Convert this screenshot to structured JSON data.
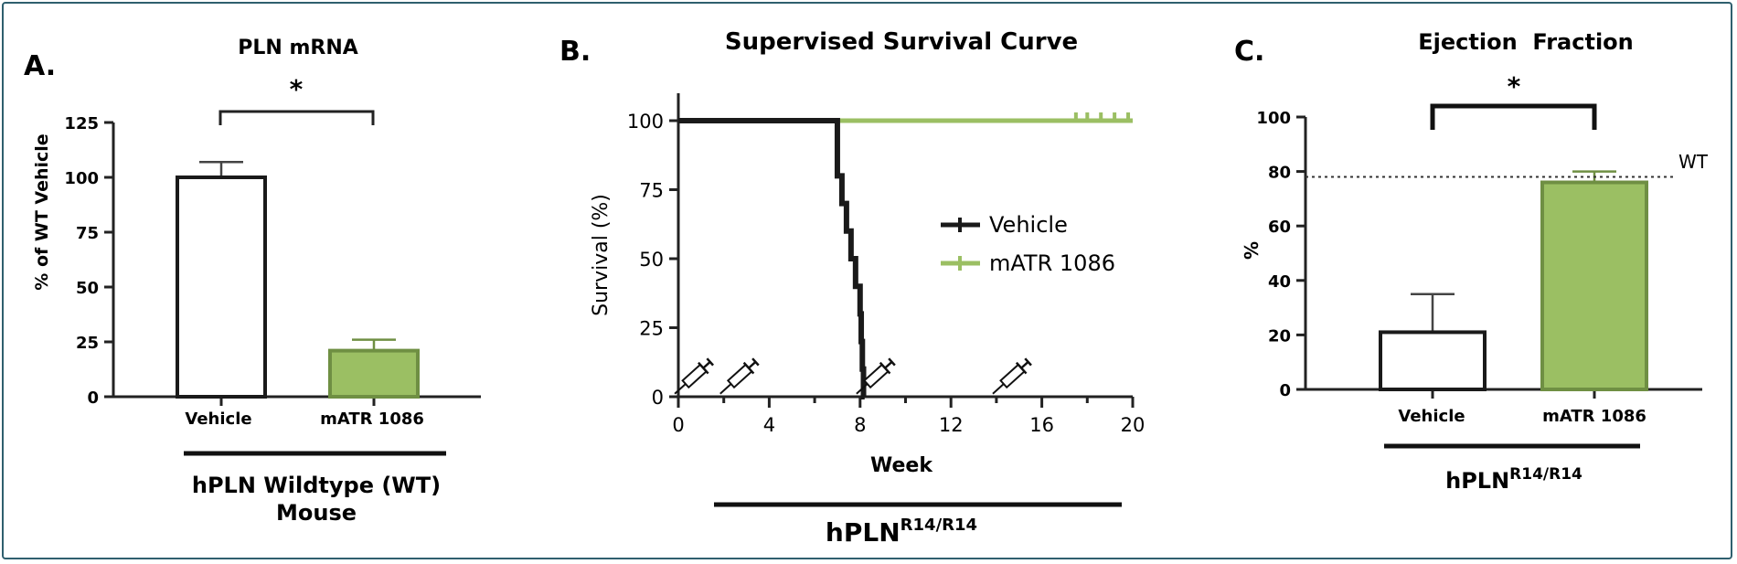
{
  "colors": {
    "green": "#9bbf63",
    "green_border": "#6f8f43",
    "black": "#1a1a1a",
    "frame": "#2f5f6e"
  },
  "panel_a": {
    "panel_letter": "A.",
    "significance": "*",
    "group_label_line1": "hPLN Wildtype (WT)",
    "group_label_line2": "Mouse"
  },
  "panel_b": {
    "panel_letter": "B.",
    "group_label_main": "hPLN",
    "group_label_sup": "R14/R14",
    "dosing_icon": "syringe-icon"
  },
  "panel_c": {
    "panel_letter": "C.",
    "significance": "*",
    "reference_label": "WT",
    "group_label_main": "hPLN",
    "group_label_sup": "R14/R14"
  },
  "chart_data": [
    {
      "type": "bar",
      "title": "PLN mRNA",
      "ylabel": "% of WT Vehicle",
      "xlabel": "",
      "categories": [
        "Vehicle",
        "mATR 1086"
      ],
      "values": [
        100,
        21
      ],
      "errors": [
        7,
        5
      ],
      "ylim": [
        0,
        125
      ],
      "yticks": [
        0,
        25,
        50,
        75,
        100,
        125
      ],
      "bar_fills": [
        "#ffffff",
        "#9bbf63"
      ]
    },
    {
      "type": "line",
      "title": "Supervised Survival Curve",
      "xlabel": "Week",
      "ylabel": "Survival (%)",
      "xlim": [
        0,
        20
      ],
      "ylim": [
        0,
        100
      ],
      "xticks": [
        0,
        4,
        8,
        12,
        16,
        20
      ],
      "yticks": [
        0,
        25,
        50,
        75,
        100
      ],
      "legend_placement": "center-right",
      "series": [
        {
          "name": "Vehicle",
          "color": "#1a1a1a",
          "steps": [
            [
              0,
              100
            ],
            [
              7,
              100
            ],
            [
              7,
              80
            ],
            [
              7.2,
              80
            ],
            [
              7.2,
              70
            ],
            [
              7.4,
              70
            ],
            [
              7.4,
              60
            ],
            [
              7.6,
              60
            ],
            [
              7.6,
              50
            ],
            [
              7.8,
              50
            ],
            [
              7.8,
              40
            ],
            [
              8.0,
              40
            ],
            [
              8.0,
              30
            ],
            [
              8.05,
              30
            ],
            [
              8.05,
              20
            ],
            [
              8.1,
              20
            ],
            [
              8.1,
              10
            ],
            [
              8.15,
              10
            ],
            [
              8.15,
              0
            ],
            [
              8.2,
              0
            ]
          ],
          "censored": []
        },
        {
          "name": "mATR 1086",
          "color": "#9bbf63",
          "steps": [
            [
              0,
              100
            ],
            [
              20,
              100
            ]
          ],
          "censored": [
            17.5,
            18.0,
            18.6,
            19.2,
            19.8
          ]
        }
      ],
      "dosing_weeks": [
        0.5,
        2.5,
        8.5,
        14.5
      ]
    },
    {
      "type": "bar",
      "title": "Ejection  Fraction",
      "ylabel": "%",
      "xlabel": "",
      "categories": [
        "Vehicle",
        "mATR 1086"
      ],
      "values": [
        21,
        76
      ],
      "errors": [
        14,
        4
      ],
      "ylim": [
        0,
        100
      ],
      "yticks": [
        0,
        20,
        40,
        60,
        80,
        100
      ],
      "reference_line": 78,
      "bar_fills": [
        "#ffffff",
        "#9bbf63"
      ]
    }
  ]
}
